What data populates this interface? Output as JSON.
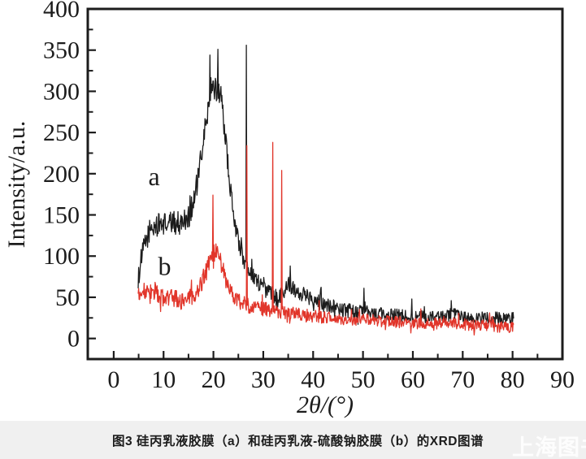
{
  "page": {
    "background": "#ffffff",
    "caption_bar_color": "#f0f0f0"
  },
  "caption": {
    "text": "图3  硅丙乳液胶膜（a）和硅丙乳液-硫酸钠胶膜（b）的XRD图谱"
  },
  "watermark": {
    "text": "上海图书馆",
    "color": "#ffffff"
  },
  "chart_data": {
    "type": "line",
    "title": "",
    "xlabel": "2θ/(°)",
    "ylabel": "Intensity/a.u.",
    "x_range": [
      -5.2,
      90
    ],
    "y_range": [
      -25,
      400
    ],
    "x_ticks": [
      0,
      10,
      20,
      30,
      40,
      50,
      60,
      70,
      80,
      90
    ],
    "x_minor_ticks": [
      5,
      15,
      25,
      35,
      45,
      55,
      65,
      75,
      85
    ],
    "y_ticks": [
      0,
      50,
      100,
      150,
      200,
      250,
      300,
      350,
      400
    ],
    "y_minor_ticks": [
      25,
      75,
      125,
      175,
      225,
      275,
      325,
      375
    ],
    "grid": false,
    "legend": "inline-letters",
    "frame_color": "#1c1c1c",
    "annotations": [
      {
        "label": "a",
        "x": 8.1,
        "y": 197
      },
      {
        "label": "b",
        "x": 10.2,
        "y": 88
      }
    ],
    "series": [
      {
        "name": "a",
        "description": "硅丙乳液胶膜",
        "color": "#1c1c1c",
        "seed": 1234,
        "x_start": 4.9,
        "x_end": 80.2,
        "baseline": [
          [
            4.9,
            72
          ],
          [
            5.5,
            95
          ],
          [
            6,
            110
          ],
          [
            7,
            127
          ],
          [
            8,
            135
          ],
          [
            9,
            138
          ],
          [
            10,
            140
          ],
          [
            11,
            139
          ],
          [
            12,
            141
          ],
          [
            13,
            140
          ],
          [
            14,
            143
          ],
          [
            15,
            148
          ],
          [
            16,
            166
          ],
          [
            17,
            196
          ],
          [
            18,
            240
          ],
          [
            18.5,
            262
          ],
          [
            19,
            280
          ],
          [
            19.5,
            293
          ],
          [
            20,
            301
          ],
          [
            20.5,
            303
          ],
          [
            21,
            299
          ],
          [
            21.5,
            296
          ],
          [
            22,
            268
          ],
          [
            22.5,
            237
          ],
          [
            23,
            206
          ],
          [
            23.5,
            176
          ],
          [
            24,
            151
          ],
          [
            24.5,
            135
          ],
          [
            25,
            119
          ],
          [
            25.5,
            106
          ],
          [
            26,
            96
          ],
          [
            27,
            86
          ],
          [
            28,
            76
          ],
          [
            29,
            68
          ],
          [
            30,
            62
          ],
          [
            31,
            57
          ],
          [
            32,
            53
          ],
          [
            33,
            52
          ],
          [
            34,
            56
          ],
          [
            35,
            66
          ],
          [
            36,
            62
          ],
          [
            37,
            57
          ],
          [
            38,
            54
          ],
          [
            39,
            51
          ],
          [
            40,
            49
          ],
          [
            41,
            47
          ],
          [
            42,
            44
          ],
          [
            43,
            41
          ],
          [
            44,
            39
          ],
          [
            45,
            37
          ],
          [
            46,
            35
          ],
          [
            47,
            34
          ],
          [
            48,
            33
          ],
          [
            49,
            32
          ],
          [
            50,
            33
          ],
          [
            51,
            31
          ],
          [
            52,
            30
          ],
          [
            53,
            29
          ],
          [
            54,
            29
          ],
          [
            55,
            30
          ],
          [
            56,
            28
          ],
          [
            57,
            28
          ],
          [
            58,
            27
          ],
          [
            59,
            28
          ],
          [
            60,
            27
          ],
          [
            61,
            26
          ],
          [
            62,
            26
          ],
          [
            63,
            25
          ],
          [
            64,
            25
          ],
          [
            65,
            26
          ],
          [
            66,
            26
          ],
          [
            67,
            28
          ],
          [
            68,
            30
          ],
          [
            69,
            27
          ],
          [
            70,
            26
          ],
          [
            71,
            25
          ],
          [
            72,
            25
          ],
          [
            73,
            24
          ],
          [
            74,
            25
          ],
          [
            75,
            25
          ],
          [
            76,
            26
          ],
          [
            77,
            25
          ],
          [
            78,
            25
          ],
          [
            79,
            25
          ],
          [
            80.2,
            25
          ]
        ],
        "noise": [
          [
            4.9,
            13
          ],
          [
            16,
            15
          ],
          [
            22,
            14
          ],
          [
            26,
            10
          ],
          [
            35,
            10
          ],
          [
            45,
            9
          ],
          [
            60,
            8
          ],
          [
            80.2,
            7
          ]
        ],
        "spikes": [
          [
            19.3,
            344
          ],
          [
            20.9,
            351
          ],
          [
            26.62,
            356
          ],
          [
            35.4,
            88
          ],
          [
            41.5,
            60
          ],
          [
            50.2,
            61
          ],
          [
            59.8,
            48
          ],
          [
            67.7,
            46
          ]
        ]
      },
      {
        "name": "b",
        "description": "硅丙乳液-硫酸钠胶膜",
        "color": "#e1352a",
        "seed": 99,
        "x_start": 4.9,
        "x_end": 80.2,
        "baseline": [
          [
            4.9,
            60
          ],
          [
            5.5,
            58
          ],
          [
            6,
            56
          ],
          [
            7,
            54
          ],
          [
            8,
            53
          ],
          [
            9,
            52
          ],
          [
            10,
            50
          ],
          [
            11,
            50
          ],
          [
            12,
            48
          ],
          [
            13,
            46
          ],
          [
            14,
            46
          ],
          [
            15,
            48
          ],
          [
            16,
            52
          ],
          [
            17,
            61
          ],
          [
            18,
            73
          ],
          [
            18.5,
            81
          ],
          [
            19,
            90
          ],
          [
            19.5,
            98
          ],
          [
            20,
            103
          ],
          [
            20.5,
            105
          ],
          [
            21,
            101
          ],
          [
            21.5,
            95
          ],
          [
            22,
            83
          ],
          [
            22.5,
            71
          ],
          [
            23,
            61
          ],
          [
            24,
            51
          ],
          [
            25,
            46
          ],
          [
            26,
            43
          ],
          [
            27,
            40
          ],
          [
            28,
            38
          ],
          [
            29,
            37
          ],
          [
            30,
            36
          ],
          [
            31,
            35
          ],
          [
            32,
            34
          ],
          [
            33,
            33
          ],
          [
            34,
            32
          ],
          [
            35,
            31
          ],
          [
            36,
            30
          ],
          [
            37,
            29
          ],
          [
            38,
            28
          ],
          [
            40,
            27
          ],
          [
            42,
            26
          ],
          [
            44,
            25
          ],
          [
            46,
            24
          ],
          [
            48,
            23
          ],
          [
            50,
            23
          ],
          [
            52,
            22
          ],
          [
            54,
            21
          ],
          [
            56,
            20
          ],
          [
            58,
            20
          ],
          [
            60,
            19
          ],
          [
            62,
            18
          ],
          [
            64,
            18
          ],
          [
            66,
            18
          ],
          [
            68,
            20
          ],
          [
            70,
            17
          ],
          [
            72,
            16
          ],
          [
            74,
            16
          ],
          [
            76,
            15
          ],
          [
            78,
            14
          ],
          [
            80.2,
            14
          ]
        ],
        "noise": [
          [
            4.9,
            12
          ],
          [
            16,
            11
          ],
          [
            21,
            12
          ],
          [
            24,
            10
          ],
          [
            35,
            8
          ],
          [
            60,
            7
          ],
          [
            80.2,
            7
          ]
        ],
        "spikes": [
          [
            19.9,
            174
          ],
          [
            26.66,
            234
          ],
          [
            31.9,
            238
          ],
          [
            33.7,
            204
          ],
          [
            41.2,
            46
          ],
          [
            61.6,
            36
          ],
          [
            75.4,
            31
          ]
        ]
      }
    ]
  }
}
